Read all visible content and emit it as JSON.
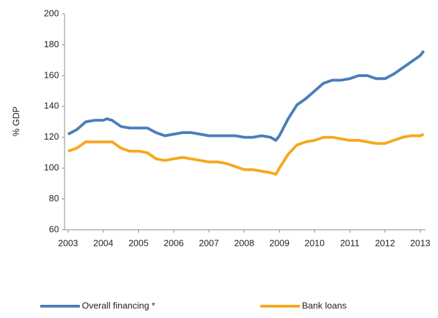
{
  "chart_data": {
    "type": "line",
    "y_label": "% GDP",
    "x": [
      2003,
      2003.25,
      2003.5,
      2003.75,
      2004,
      2004.1,
      2004.25,
      2004.5,
      2004.75,
      2005,
      2005.25,
      2005.5,
      2005.75,
      2006,
      2006.25,
      2006.5,
      2006.75,
      2007,
      2007.25,
      2007.5,
      2007.75,
      2008,
      2008.25,
      2008.5,
      2008.75,
      2008.9,
      2009,
      2009.25,
      2009.5,
      2009.75,
      2010,
      2010.25,
      2010.5,
      2010.75,
      2011,
      2011.25,
      2011.5,
      2011.75,
      2012,
      2012.25,
      2012.5,
      2012.75,
      2013,
      2013.1
    ],
    "series": [
      {
        "name": "Overall financing *",
        "color": "#4a7ebb",
        "values": [
          122,
          125,
          130,
          131,
          131,
          132,
          131,
          127,
          126,
          126,
          126,
          123,
          121,
          122,
          123,
          123,
          122,
          121,
          121,
          121,
          121,
          120,
          120,
          121,
          120,
          118,
          121,
          132,
          141,
          145,
          150,
          155,
          157,
          157,
          158,
          160,
          160,
          158,
          158,
          161,
          165,
          169,
          173,
          176
        ]
      },
      {
        "name": "Bank loans",
        "color": "#f7a81b",
        "values": [
          111,
          113,
          117,
          117,
          117,
          117,
          117,
          113,
          111,
          111,
          110,
          106,
          105,
          106,
          107,
          106,
          105,
          104,
          104,
          103,
          101,
          99,
          99,
          98,
          97,
          96,
          100,
          109,
          115,
          117,
          118,
          120,
          120,
          119,
          118,
          118,
          117,
          116,
          116,
          118,
          120,
          121,
          121,
          122
        ]
      }
    ],
    "xlim": [
      2002.9,
      2013.15
    ],
    "xticks": [
      2003,
      2004,
      2005,
      2006,
      2007,
      2008,
      2009,
      2010,
      2011,
      2012,
      2013
    ],
    "ylim": [
      60,
      200
    ],
    "yticks": [
      60,
      80,
      100,
      120,
      140,
      160,
      180,
      200
    ],
    "grid": false,
    "legend": "bottom"
  }
}
